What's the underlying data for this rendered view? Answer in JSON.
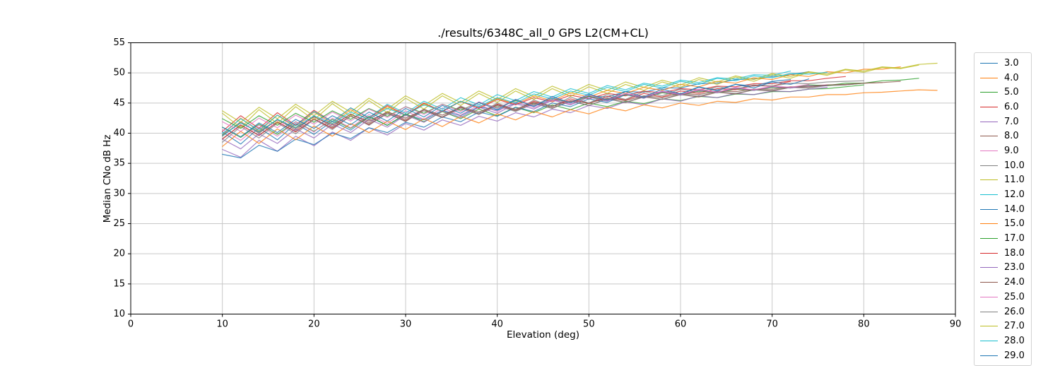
{
  "figure": {
    "title": "./results/6348C_all_0 GPS L2(CM+CL)",
    "xlabel": "Elevation (deg)",
    "ylabel": "Median CNo dB Hz"
  },
  "colors": {
    "grid": "#c8c8c8",
    "spine": "#000000",
    "background": "#ffffff",
    "legend_border": "#d2d2d2"
  },
  "chart_data": {
    "type": "line",
    "title": "./results/6348C_all_0 GPS L2(CM+CL)",
    "xlabel": "Elevation (deg)",
    "ylabel": "Median CNo dB Hz",
    "xlim": [
      0,
      90
    ],
    "ylim": [
      10,
      55
    ],
    "xticks": [
      0,
      10,
      20,
      30,
      40,
      50,
      60,
      70,
      80,
      90
    ],
    "yticks": [
      10,
      15,
      20,
      25,
      30,
      35,
      40,
      45,
      50,
      55
    ],
    "grid": true,
    "legend_position": "right-outside",
    "legend_title": null,
    "x_start": 10,
    "x_step": 2,
    "series": [
      {
        "name": "3.0",
        "color": "#1f77b4",
        "values": [
          40.2,
          38.2,
          40.9,
          38.9,
          41.6,
          39.8,
          42.0,
          40.5,
          42.7,
          41.3,
          43.1,
          42.2,
          43.8,
          42.9,
          44.4,
          43.8,
          45.0,
          44.5,
          45.6,
          45.2,
          46.2,
          46.0,
          46.9,
          46.8,
          47.5,
          47.5,
          48.2,
          48.3,
          48.9,
          49.0,
          49.4,
          49.7,
          50.2
        ]
      },
      {
        "name": "4.0",
        "color": "#ff7f0e",
        "values": [
          39.7,
          42.5,
          40.3,
          43.0,
          40.9,
          43.5,
          41.6,
          43.9,
          42.2,
          44.4,
          42.9,
          44.9,
          43.6,
          45.3,
          44.2,
          45.8,
          44.8,
          46.2,
          45.4,
          46.7,
          46.0,
          47.1,
          46.6,
          47.6,
          47.1,
          48.1,
          47.7,
          48.6,
          48.3,
          49.2,
          48.9,
          49.7,
          49.4,
          50.2,
          50.0,
          50.6,
          50.6,
          51.0
        ]
      },
      {
        "name": "5.0",
        "color": "#2ca02c",
        "values": [
          41.0,
          39.3,
          41.5,
          39.8,
          41.9,
          40.3,
          42.3,
          40.8,
          42.8,
          41.3,
          43.2,
          41.9,
          43.6,
          42.4,
          44.0,
          42.9,
          44.3,
          43.4,
          44.7,
          43.9,
          45.0,
          44.4,
          45.3,
          44.9,
          45.7,
          45.4,
          46.1,
          45.9,
          46.5,
          46.4,
          46.9,
          46.9,
          47.3,
          47.4,
          47.7,
          48.0
        ]
      },
      {
        "name": "6.0",
        "color": "#d62728",
        "values": [
          40.3,
          42.9,
          40.8,
          43.4,
          41.3,
          43.8,
          41.9,
          44.2,
          42.5,
          44.6,
          43.0,
          45.0,
          43.6,
          45.3,
          44.1,
          45.6,
          44.7,
          45.9,
          45.2,
          46.3,
          45.7,
          46.6,
          46.2,
          47.0,
          46.7,
          47.4,
          47.2,
          47.8,
          47.7,
          48.2,
          48.2,
          48.7,
          48.7,
          49.1,
          49.4
        ]
      },
      {
        "name": "7.0",
        "color": "#9467bd",
        "values": [
          37.3,
          36.0,
          38.8,
          37.0,
          39.5,
          37.9,
          40.2,
          38.8,
          40.9,
          39.7,
          41.6,
          40.5,
          42.2,
          41.3,
          42.8,
          42.0,
          43.4,
          42.7,
          44.0,
          43.4,
          44.6,
          44.1,
          45.2,
          44.7,
          45.7,
          45.3,
          46.2,
          45.9,
          46.6,
          46.4,
          47.0,
          46.9,
          47.3,
          47.6
        ]
      },
      {
        "name": "8.0",
        "color": "#8c564b",
        "values": [
          39.5,
          41.9,
          40.0,
          42.3,
          40.5,
          42.8,
          41.1,
          43.2,
          41.7,
          43.6,
          42.2,
          44.0,
          42.7,
          44.3,
          43.2,
          44.7,
          43.7,
          45.0,
          44.2,
          45.3,
          44.6,
          45.7,
          45.1,
          46.0,
          45.6,
          46.4,
          46.0,
          46.8,
          46.5,
          47.2,
          47.0,
          47.6,
          47.5,
          48.0,
          48.0,
          48.3,
          48.4,
          48.6
        ]
      },
      {
        "name": "9.0",
        "color": "#e377c2",
        "values": [
          40.6,
          38.8,
          41.3,
          39.5,
          41.9,
          40.2,
          42.5,
          40.9,
          43.1,
          41.6,
          43.7,
          42.3,
          44.2,
          43.0,
          44.7,
          43.6,
          45.2,
          44.2,
          45.6,
          44.8,
          46.0,
          45.4,
          46.4,
          45.9,
          46.8,
          46.4,
          47.1,
          46.8,
          47.4,
          47.2,
          47.7,
          47.6,
          47.9,
          48.0
        ]
      },
      {
        "name": "10.0",
        "color": "#7f7f7f",
        "values": [
          39.1,
          41.3,
          39.7,
          41.8,
          40.3,
          42.3,
          40.9,
          42.8,
          41.5,
          43.2,
          42.0,
          43.7,
          42.6,
          44.1,
          43.1,
          44.5,
          43.6,
          44.9,
          44.1,
          45.3,
          44.6,
          45.7,
          45.1,
          46.1,
          45.6,
          46.5,
          46.1,
          46.9,
          46.6,
          47.2,
          47.1,
          47.6,
          47.5,
          47.9,
          48.0,
          48.3
        ]
      },
      {
        "name": "11.0",
        "color": "#bcbd22",
        "values": [
          43.7,
          41.8,
          44.3,
          42.4,
          44.8,
          42.9,
          45.3,
          43.5,
          45.8,
          44.0,
          46.2,
          44.6,
          46.6,
          45.1,
          47.0,
          45.6,
          47.4,
          46.1,
          47.8,
          46.6,
          48.1,
          47.1,
          48.5,
          47.6,
          48.8,
          48.0,
          49.2,
          48.5,
          49.5,
          48.9,
          49.9,
          49.4,
          50.2,
          49.8,
          50.6,
          50.3,
          51.0,
          50.8,
          51.4,
          51.6
        ]
      },
      {
        "name": "12.0",
        "color": "#17becf",
        "values": [
          39.9,
          42.4,
          40.5,
          43.0,
          41.2,
          43.6,
          41.9,
          44.2,
          42.6,
          44.8,
          43.3,
          45.3,
          44.0,
          45.9,
          44.7,
          46.4,
          45.4,
          46.9,
          46.0,
          47.4,
          46.6,
          47.9,
          47.2,
          48.3,
          47.8,
          48.8,
          48.4,
          49.2,
          49.0,
          49.7,
          49.6,
          50.3
        ]
      },
      {
        "name": "14.0",
        "color": "#1f77b4",
        "values": [
          36.5,
          35.9,
          38.0,
          37.0,
          39.0,
          38.1,
          40.0,
          39.1,
          40.9,
          40.1,
          41.8,
          41.0,
          42.7,
          41.9,
          43.5,
          42.8,
          44.3,
          43.6,
          45.0,
          44.4,
          45.7,
          45.1,
          46.4,
          45.8,
          47.0,
          46.5,
          47.6,
          47.2,
          48.1,
          47.8,
          48.6,
          48.9
        ]
      },
      {
        "name": "15.0",
        "color": "#ff7f0e",
        "values": [
          37.8,
          40.3,
          38.3,
          40.7,
          38.9,
          41.2,
          39.5,
          41.6,
          40.1,
          42.0,
          40.6,
          42.4,
          41.1,
          42.8,
          41.7,
          43.2,
          42.2,
          43.6,
          42.7,
          43.9,
          43.2,
          44.3,
          43.7,
          44.7,
          44.2,
          45.0,
          44.6,
          45.3,
          45.1,
          45.7,
          45.5,
          46.0,
          46.0,
          46.4,
          46.4,
          46.7,
          46.8,
          47.0,
          47.2,
          47.1
        ]
      },
      {
        "name": "17.0",
        "color": "#2ca02c",
        "values": [
          42.4,
          40.8,
          42.9,
          41.3,
          43.3,
          41.8,
          43.7,
          42.3,
          44.1,
          42.8,
          44.4,
          43.3,
          44.8,
          43.8,
          45.1,
          44.2,
          45.4,
          44.7,
          45.8,
          45.1,
          46.1,
          45.5,
          46.4,
          45.9,
          46.7,
          46.3,
          47.0,
          46.7,
          47.3,
          47.1,
          47.6,
          47.5,
          48.0,
          47.9,
          48.3,
          48.3,
          48.7,
          48.8,
          49.1
        ]
      },
      {
        "name": "18.0",
        "color": "#d62728",
        "values": [
          39.0,
          41.4,
          39.6,
          41.9,
          40.2,
          42.4,
          40.8,
          42.9,
          41.4,
          43.4,
          42.0,
          43.9,
          42.6,
          44.4,
          43.2,
          44.8,
          43.8,
          45.3,
          44.4,
          45.7,
          44.9,
          46.1,
          45.5,
          46.6,
          46.0,
          47.0,
          46.6,
          47.4,
          47.2,
          47.9,
          47.8,
          48.6
        ]
      },
      {
        "name": "23.0",
        "color": "#9467bd",
        "values": [
          39.0,
          37.4,
          39.9,
          38.3,
          40.7,
          39.2,
          41.5,
          40.1,
          42.3,
          41.0,
          43.0,
          41.8,
          43.7,
          42.6,
          44.3,
          43.3,
          44.9,
          44.0,
          45.5,
          44.7,
          46.0,
          45.3,
          46.5,
          45.8,
          46.9,
          46.3,
          47.2,
          46.7,
          47.5,
          47.1,
          47.7,
          47.5,
          47.8,
          47.9
        ]
      },
      {
        "name": "24.0",
        "color": "#8c564b",
        "values": [
          39.7,
          41.7,
          40.2,
          42.2,
          40.8,
          42.7,
          41.4,
          43.1,
          42.0,
          43.5,
          42.5,
          43.9,
          43.0,
          44.3,
          43.5,
          44.7,
          44.0,
          45.1,
          44.5,
          45.4,
          45.0,
          45.8,
          45.4,
          46.2,
          45.9,
          46.6,
          46.4,
          47.0,
          46.9,
          47.3,
          47.3,
          47.7,
          47.7,
          48.0,
          48.1,
          48.3,
          48.4
        ]
      },
      {
        "name": "25.0",
        "color": "#e377c2",
        "values": [
          41.9,
          40.3,
          42.5,
          40.9,
          43.0,
          41.5,
          43.5,
          42.0,
          44.0,
          42.6,
          44.4,
          43.1,
          44.8,
          43.6,
          45.2,
          44.1,
          45.6,
          44.6,
          45.9,
          45.1,
          46.3,
          45.5,
          46.6,
          46.0,
          47.0,
          46.4,
          47.3,
          46.8,
          47.6,
          47.2,
          47.8,
          47.6,
          48.1
        ]
      },
      {
        "name": "26.0",
        "color": "#7f7f7f",
        "values": [
          38.5,
          41.1,
          39.2,
          41.7,
          39.9,
          42.3,
          40.6,
          42.9,
          41.3,
          43.4,
          41.9,
          44.0,
          42.6,
          44.5,
          43.2,
          45.0,
          43.8,
          45.5,
          44.4,
          46.0,
          45.0,
          46.4,
          45.6,
          46.9,
          46.2,
          47.3,
          46.8,
          47.7,
          47.3,
          48.0,
          47.8,
          48.3,
          48.2,
          48.5,
          48.6,
          48.7
        ]
      },
      {
        "name": "27.0",
        "color": "#bcbd22",
        "values": [
          43.3,
          40.9,
          43.9,
          41.6,
          44.4,
          42.2,
          44.9,
          42.8,
          45.4,
          43.4,
          45.8,
          44.0,
          46.2,
          44.6,
          46.6,
          45.1,
          47.0,
          45.6,
          47.4,
          46.1,
          47.7,
          46.6,
          48.1,
          47.1,
          48.5,
          47.6,
          48.9,
          48.1,
          49.3,
          48.6,
          49.7,
          49.1,
          50.1,
          49.6,
          50.5,
          50.1,
          50.9,
          50.7,
          51.3
        ]
      },
      {
        "name": "28.0",
        "color": "#17becf",
        "values": [
          39.6,
          41.7,
          40.2,
          42.3,
          40.9,
          42.9,
          41.6,
          43.5,
          42.3,
          44.1,
          43.0,
          44.7,
          43.7,
          45.3,
          44.4,
          45.9,
          45.0,
          46.5,
          45.7,
          47.0,
          46.3,
          47.6,
          46.9,
          48.1,
          47.5,
          48.6,
          48.1,
          49.1,
          48.7,
          49.5,
          49.2,
          49.9,
          49.8,
          50.1
        ]
      },
      {
        "name": "29.0",
        "color": "#1f77b4",
        "values": [
          41.0,
          39.4,
          41.7,
          40.1,
          42.3,
          40.8,
          42.9,
          41.4,
          43.5,
          42.0,
          44.1,
          42.7,
          44.6,
          43.3,
          45.1,
          43.9,
          45.6,
          44.4,
          46.1,
          45.0,
          46.5,
          45.5,
          46.9,
          46.0,
          47.3,
          46.5,
          47.7,
          47.0,
          48.1,
          47.5,
          48.5,
          48.1,
          49.0
        ]
      }
    ]
  }
}
